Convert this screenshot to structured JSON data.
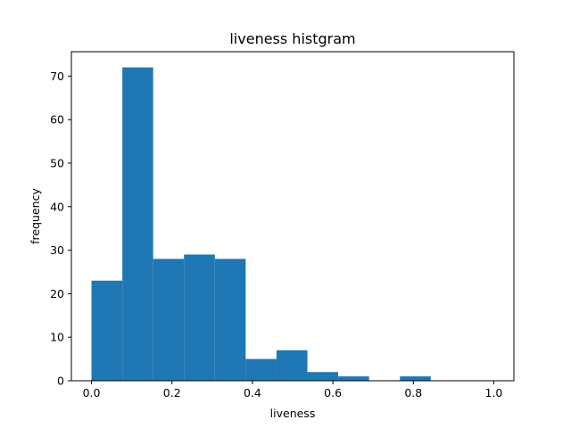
{
  "chart_data": {
    "type": "bar",
    "title": "liveness histgram",
    "xlabel": "liveness",
    "ylabel": "frequency",
    "bins": [
      {
        "start": 0.0,
        "end": 0.0767,
        "value": 23
      },
      {
        "start": 0.0767,
        "end": 0.1533,
        "value": 72
      },
      {
        "start": 0.1533,
        "end": 0.23,
        "value": 28
      },
      {
        "start": 0.23,
        "end": 0.3067,
        "value": 29
      },
      {
        "start": 0.3067,
        "end": 0.3833,
        "value": 28
      },
      {
        "start": 0.3833,
        "end": 0.46,
        "value": 5
      },
      {
        "start": 0.46,
        "end": 0.5367,
        "value": 7
      },
      {
        "start": 0.5367,
        "end": 0.6133,
        "value": 2
      },
      {
        "start": 0.6133,
        "end": 0.69,
        "value": 1
      },
      {
        "start": 0.69,
        "end": 0.7667,
        "value": 0
      },
      {
        "start": 0.7667,
        "end": 0.8433,
        "value": 1
      },
      {
        "start": 0.8433,
        "end": 0.92,
        "value": 0
      },
      {
        "start": 0.92,
        "end": 1.0,
        "value": 0
      }
    ],
    "xlim": [
      -0.05,
      1.05
    ],
    "ylim": [
      0,
      75.6
    ],
    "x_ticks": [
      0.0,
      0.2,
      0.4,
      0.6,
      0.8,
      1.0
    ],
    "x_tick_labels": [
      "0.0",
      "0.2",
      "0.4",
      "0.6",
      "0.8",
      "1.0"
    ],
    "y_ticks": [
      0,
      10,
      20,
      30,
      40,
      50,
      60,
      70
    ],
    "y_tick_labels": [
      "0",
      "10",
      "20",
      "30",
      "40",
      "50",
      "60",
      "70"
    ],
    "bar_color": "#1f77b4",
    "grid": false,
    "legend": "none"
  }
}
